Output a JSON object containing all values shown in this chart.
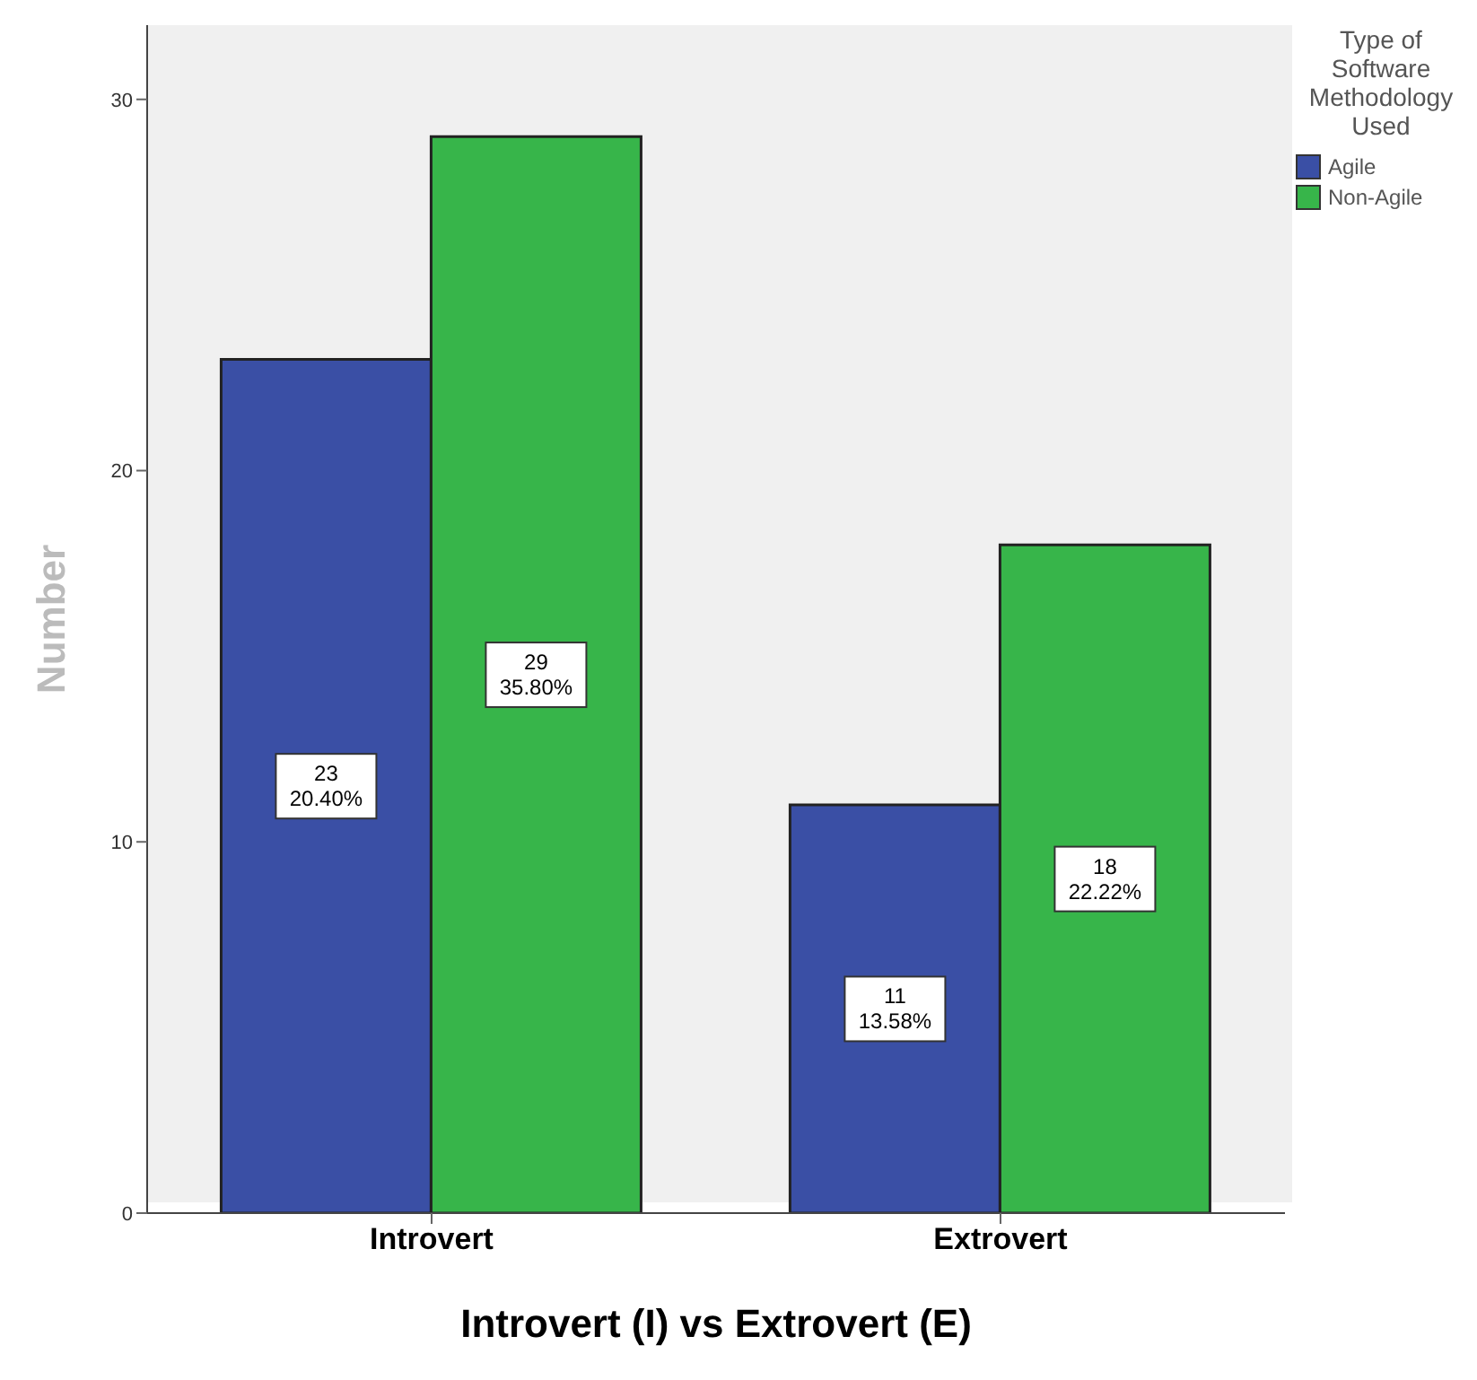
{
  "chart_data": {
    "type": "bar",
    "xlabel": "Introvert (I) vs Extrovert (E)",
    "ylabel": "Number",
    "legend_title": "Type of Software Methodology Used",
    "categories": [
      "Introvert",
      "Extrovert"
    ],
    "series": [
      {
        "name": "Agile",
        "color": "#3a4fa5",
        "values": [
          23,
          11
        ],
        "value_labels": [
          "23\n20.40%",
          "11\n13.58%"
        ]
      },
      {
        "name": "Non-Agile",
        "color": "#37b54a",
        "values": [
          29,
          18
        ],
        "value_labels": [
          "29\n35.80%",
          "18\n22.22%"
        ]
      }
    ],
    "ylim": [
      0,
      32
    ],
    "yticks": [
      0,
      10,
      20,
      30
    ],
    "grid": false,
    "legend": "top right"
  }
}
